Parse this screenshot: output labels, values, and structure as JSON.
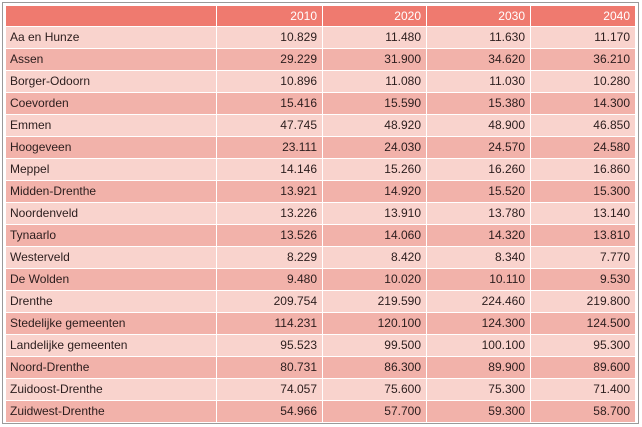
{
  "table": {
    "headers": [
      "",
      "2010",
      "2020",
      "2030",
      "2040"
    ],
    "rows": [
      {
        "name": "Aa en Hunze",
        "values": [
          "10.829",
          "11.480",
          "11.630",
          "11.170"
        ]
      },
      {
        "name": "Assen",
        "values": [
          "29.229",
          "31.900",
          "34.620",
          "36.210"
        ]
      },
      {
        "name": "Borger-Odoorn",
        "values": [
          "10.896",
          "11.080",
          "11.030",
          "10.280"
        ]
      },
      {
        "name": "Coevorden",
        "values": [
          "15.416",
          "15.590",
          "15.380",
          "14.300"
        ]
      },
      {
        "name": "Emmen",
        "values": [
          "47.745",
          "48.920",
          "48.900",
          "46.850"
        ]
      },
      {
        "name": "Hoogeveen",
        "values": [
          "23.111",
          "24.030",
          "24.570",
          "24.580"
        ]
      },
      {
        "name": "Meppel",
        "values": [
          "14.146",
          "15.260",
          "16.260",
          "16.860"
        ]
      },
      {
        "name": "Midden-Drenthe",
        "values": [
          "13.921",
          "14.920",
          "15.520",
          "15.300"
        ]
      },
      {
        "name": "Noordenveld",
        "values": [
          "13.226",
          "13.910",
          "13.780",
          "13.140"
        ]
      },
      {
        "name": "Tynaarlo",
        "values": [
          "13.526",
          "14.060",
          "14.320",
          "13.810"
        ]
      },
      {
        "name": "Westerveld",
        "values": [
          "8.229",
          "8.420",
          "8.340",
          "7.770"
        ]
      },
      {
        "name": "De Wolden",
        "values": [
          "9.480",
          "10.020",
          "10.110",
          "9.530"
        ]
      },
      {
        "name": "Drenthe",
        "values": [
          "209.754",
          "219.590",
          "224.460",
          "219.800"
        ]
      },
      {
        "name": "Stedelijke gemeenten",
        "values": [
          "114.231",
          "120.100",
          "124.300",
          "124.500"
        ]
      },
      {
        "name": "Landelijke gemeenten",
        "values": [
          "95.523",
          "99.500",
          "100.100",
          "95.300"
        ]
      },
      {
        "name": "Noord-Drenthe",
        "values": [
          "80.731",
          "86.300",
          "89.900",
          "89.600"
        ]
      },
      {
        "name": "Zuidoost-Drenthe",
        "values": [
          "74.057",
          "75.600",
          "75.300",
          "71.400"
        ]
      },
      {
        "name": "Zuidwest-Drenthe",
        "values": [
          "54.966",
          "57.700",
          "59.300",
          "58.700"
        ]
      }
    ]
  },
  "colors": {
    "header_bg": "#ef7a6f",
    "header_text": "#ffffff",
    "row_light": "#f9d3cd",
    "row_dark": "#f2b2aa",
    "cell_text": "#2b1d1d"
  }
}
